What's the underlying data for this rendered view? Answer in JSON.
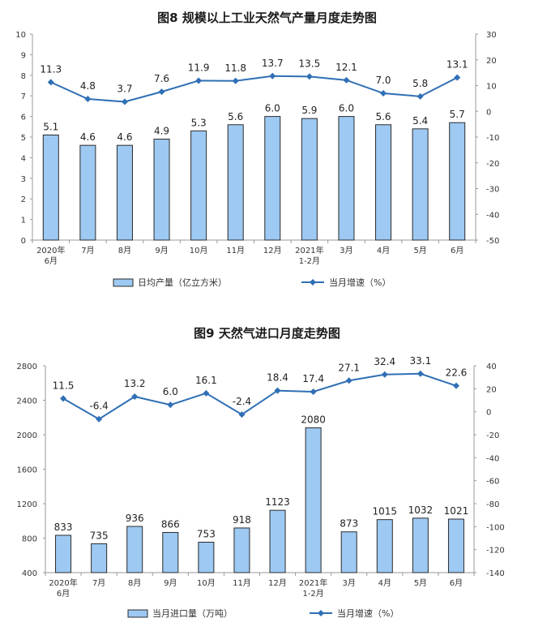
{
  "chart_data": [
    {
      "type": "bar+line",
      "title": "图8  规模以上工业天然气产量月度走势图",
      "categories": [
        [
          "2020年",
          "6月"
        ],
        [
          "7月"
        ],
        [
          "8月"
        ],
        [
          "9月"
        ],
        [
          "10月"
        ],
        [
          "11月"
        ],
        [
          "12月"
        ],
        [
          "2021年",
          "1-2月"
        ],
        [
          "3月"
        ],
        [
          "4月"
        ],
        [
          "5月"
        ],
        [
          "6月"
        ]
      ],
      "bar_series": {
        "name": "日均产量（亿立方米）",
        "values": [
          5.1,
          4.6,
          4.6,
          4.9,
          5.3,
          5.6,
          6.0,
          5.9,
          6.0,
          5.6,
          5.4,
          5.7
        ],
        "labels": [
          "5.1",
          "4.6",
          "4.6",
          "4.9",
          "5.3",
          "5.6",
          "6.0",
          "5.9",
          "6.0",
          "5.6",
          "5.4",
          "5.7"
        ]
      },
      "line_series": {
        "name": "当月增速（%）",
        "values": [
          11.3,
          4.8,
          3.7,
          7.6,
          11.9,
          11.8,
          13.7,
          13.5,
          12.1,
          7.0,
          5.8,
          13.1
        ],
        "labels": [
          "11.3",
          "4.8",
          "3.7",
          "7.6",
          "11.9",
          "11.8",
          "13.7",
          "13.5",
          "12.1",
          "7.0",
          "5.8",
          "13.1"
        ]
      },
      "y_left": {
        "min": 0,
        "max": 10,
        "ticks": [
          0,
          1,
          2,
          3,
          4,
          5,
          6,
          7,
          8,
          9,
          10
        ]
      },
      "y_right": {
        "min": -50,
        "max": 30,
        "ticks": [
          -50,
          -40,
          -30,
          -20,
          -10,
          0,
          10,
          20,
          30
        ]
      },
      "colors": {
        "bar_fill": "#9dc9f2",
        "bar_stroke": "#2b2b2b",
        "line": "#2f6fb5"
      }
    },
    {
      "type": "bar+line",
      "title": "图9  天然气进口月度走势图",
      "categories": [
        [
          "2020年",
          "6月"
        ],
        [
          "7月"
        ],
        [
          "8月"
        ],
        [
          "9月"
        ],
        [
          "10月"
        ],
        [
          "11月"
        ],
        [
          "12月"
        ],
        [
          "2021年",
          "1-2月"
        ],
        [
          "3月"
        ],
        [
          "4月"
        ],
        [
          "5月"
        ],
        [
          "6月"
        ]
      ],
      "bar_series": {
        "name": "当月进口量（万吨）",
        "values": [
          833,
          735,
          936,
          866,
          753,
          918,
          1123,
          2080,
          873,
          1015,
          1032,
          1021
        ],
        "labels": [
          "833",
          "735",
          "936",
          "866",
          "753",
          "918",
          "1123",
          "2080",
          "873",
          "1015",
          "1032",
          "1021"
        ]
      },
      "line_series": {
        "name": "当月增速（%）",
        "values": [
          11.5,
          -6.4,
          13.2,
          6.0,
          16.1,
          -2.4,
          18.4,
          17.4,
          27.1,
          32.4,
          33.1,
          22.6
        ],
        "labels": [
          "11.5",
          "-6.4",
          "13.2",
          "6.0",
          "16.1",
          "-2.4",
          "18.4",
          "17.4",
          "27.1",
          "32.4",
          "33.1",
          "22.6"
        ]
      },
      "y_left": {
        "min": 400,
        "max": 2800,
        "ticks": [
          400,
          800,
          1200,
          1600,
          2000,
          2400,
          2800
        ]
      },
      "y_right": {
        "min": -140,
        "max": 40,
        "ticks": [
          -140,
          -120,
          -100,
          -80,
          -60,
          -40,
          -20,
          0,
          20,
          40
        ]
      },
      "colors": {
        "bar_fill": "#9dc9f2",
        "bar_stroke": "#2b2b2b",
        "line": "#2f6fb5"
      }
    }
  ]
}
